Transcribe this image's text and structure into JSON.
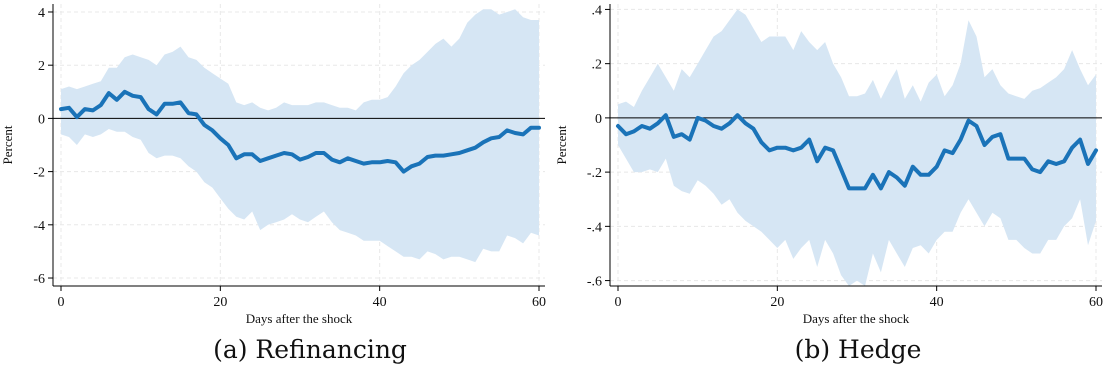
{
  "colors": {
    "line": "#1a73b8",
    "band": "#d6e6f4",
    "zero": "#000000",
    "axis": "#000000",
    "grid": "#e8e8e8"
  },
  "chart_data": [
    {
      "type": "line",
      "caption": "(a) Refinancing",
      "xlabel": "Days after the shock",
      "ylabel": "Percent",
      "xlim": [
        0,
        60
      ],
      "ylim": [
        -6.3,
        4.3
      ],
      "xticks": [
        0,
        20,
        40,
        60
      ],
      "xtick_labels": [
        "0",
        "20",
        "40",
        "60"
      ],
      "yticks": [
        -6,
        -4,
        -2,
        0,
        2,
        4
      ],
      "ytick_labels": [
        "-6",
        "-4",
        "-2",
        "0",
        "2",
        "4"
      ],
      "grid": false,
      "zero_line": 0,
      "x": [
        0,
        1,
        2,
        3,
        4,
        5,
        6,
        7,
        8,
        9,
        10,
        11,
        12,
        13,
        14,
        15,
        16,
        17,
        18,
        19,
        20,
        21,
        22,
        23,
        24,
        25,
        26,
        27,
        28,
        29,
        30,
        31,
        32,
        33,
        34,
        35,
        36,
        37,
        38,
        39,
        40,
        41,
        42,
        43,
        44,
        45,
        46,
        47,
        48,
        49,
        50,
        51,
        52,
        53,
        54,
        55,
        56,
        57,
        58,
        59,
        60
      ],
      "series": [
        {
          "values": [
            0.35,
            0.4,
            0.05,
            0.35,
            0.3,
            0.5,
            0.95,
            0.7,
            1.0,
            0.85,
            0.8,
            0.35,
            0.15,
            0.55,
            0.55,
            0.6,
            0.2,
            0.15,
            -0.25,
            -0.45,
            -0.75,
            -1.0,
            -1.5,
            -1.35,
            -1.35,
            -1.6,
            -1.5,
            -1.4,
            -1.3,
            -1.35,
            -1.55,
            -1.45,
            -1.3,
            -1.3,
            -1.55,
            -1.65,
            -1.5,
            -1.6,
            -1.7,
            -1.65,
            -1.65,
            -1.6,
            -1.65,
            -2.0,
            -1.8,
            -1.7,
            -1.45,
            -1.4,
            -1.4,
            -1.35,
            -1.3,
            -1.2,
            -1.1,
            -0.9,
            -0.75,
            -0.7,
            -0.45,
            -0.55,
            -0.6,
            -0.35,
            -0.35
          ]
        }
      ],
      "band_upper": [
        1.1,
        1.2,
        1.1,
        1.2,
        1.3,
        1.4,
        1.9,
        1.9,
        2.3,
        2.4,
        2.3,
        2.2,
        2.0,
        2.4,
        2.5,
        2.7,
        2.3,
        2.2,
        1.9,
        1.7,
        1.5,
        1.3,
        0.6,
        0.5,
        0.6,
        0.4,
        0.3,
        0.4,
        0.6,
        0.5,
        0.5,
        0.5,
        0.6,
        0.6,
        0.5,
        0.4,
        0.4,
        0.3,
        0.6,
        0.7,
        0.7,
        0.8,
        1.2,
        1.7,
        2.0,
        2.2,
        2.5,
        2.8,
        3.0,
        2.7,
        3.0,
        3.6,
        3.9,
        4.1,
        4.1,
        3.9,
        4.0,
        4.1,
        3.8,
        3.7,
        3.7
      ],
      "band_lower": [
        -0.6,
        -0.7,
        -1.0,
        -0.6,
        -0.7,
        -0.6,
        -0.4,
        -0.5,
        -0.5,
        -0.7,
        -0.8,
        -1.3,
        -1.5,
        -1.4,
        -1.4,
        -1.5,
        -1.8,
        -2.0,
        -2.4,
        -2.6,
        -3.0,
        -3.4,
        -3.7,
        -3.8,
        -3.5,
        -4.2,
        -4.0,
        -3.9,
        -3.8,
        -3.6,
        -3.8,
        -3.9,
        -3.7,
        -3.5,
        -3.9,
        -4.2,
        -4.3,
        -4.4,
        -4.6,
        -4.6,
        -4.6,
        -4.8,
        -5.0,
        -5.2,
        -5.2,
        -5.3,
        -5.0,
        -5.1,
        -5.3,
        -5.2,
        -5.2,
        -5.3,
        -5.4,
        -4.9,
        -5.0,
        -5.0,
        -4.4,
        -4.5,
        -4.7,
        -4.3,
        -4.4
      ]
    },
    {
      "type": "line",
      "caption": "(b) Hedge",
      "xlabel": "Days after the shock",
      "ylabel": "Percent",
      "xlim": [
        0,
        60
      ],
      "ylim": [
        -0.62,
        0.42
      ],
      "xticks": [
        0,
        20,
        40,
        60
      ],
      "xtick_labels": [
        "0",
        "20",
        "40",
        "60"
      ],
      "yticks": [
        -0.6,
        -0.4,
        -0.2,
        0,
        0.2,
        0.4
      ],
      "ytick_labels": [
        "-.6",
        "-.4",
        "-.2",
        "0",
        ".2",
        ".4"
      ],
      "grid": false,
      "zero_line": 0,
      "x": [
        0,
        1,
        2,
        3,
        4,
        5,
        6,
        7,
        8,
        9,
        10,
        11,
        12,
        13,
        14,
        15,
        16,
        17,
        18,
        19,
        20,
        21,
        22,
        23,
        24,
        25,
        26,
        27,
        28,
        29,
        30,
        31,
        32,
        33,
        34,
        35,
        36,
        37,
        38,
        39,
        40,
        41,
        42,
        43,
        44,
        45,
        46,
        47,
        48,
        49,
        50,
        51,
        52,
        53,
        54,
        55,
        56,
        57,
        58,
        59,
        60
      ],
      "series": [
        {
          "values": [
            -0.03,
            -0.06,
            -0.05,
            -0.03,
            -0.04,
            -0.02,
            0.01,
            -0.07,
            -0.06,
            -0.08,
            0.0,
            -0.01,
            -0.03,
            -0.04,
            -0.02,
            0.01,
            -0.02,
            -0.04,
            -0.09,
            -0.12,
            -0.11,
            -0.11,
            -0.12,
            -0.11,
            -0.08,
            -0.16,
            -0.11,
            -0.12,
            -0.19,
            -0.26,
            -0.26,
            -0.26,
            -0.21,
            -0.26,
            -0.2,
            -0.22,
            -0.25,
            -0.18,
            -0.21,
            -0.21,
            -0.18,
            -0.12,
            -0.13,
            -0.08,
            -0.01,
            -0.03,
            -0.1,
            -0.07,
            -0.06,
            -0.15,
            -0.15,
            -0.15,
            -0.19,
            -0.2,
            -0.16,
            -0.17,
            -0.16,
            -0.11,
            -0.08,
            -0.17,
            -0.12
          ]
        }
      ],
      "band_upper": [
        0.05,
        0.06,
        0.04,
        0.1,
        0.15,
        0.2,
        0.15,
        0.1,
        0.18,
        0.15,
        0.2,
        0.25,
        0.3,
        0.32,
        0.36,
        0.4,
        0.38,
        0.33,
        0.28,
        0.3,
        0.3,
        0.3,
        0.25,
        0.32,
        0.28,
        0.25,
        0.28,
        0.2,
        0.15,
        0.08,
        0.08,
        0.09,
        0.14,
        0.07,
        0.13,
        0.18,
        0.07,
        0.12,
        0.06,
        0.13,
        0.16,
        0.08,
        0.12,
        0.2,
        0.36,
        0.3,
        0.15,
        0.18,
        0.12,
        0.09,
        0.08,
        0.07,
        0.1,
        0.11,
        0.13,
        0.15,
        0.18,
        0.25,
        0.18,
        0.12,
        0.16
      ],
      "band_lower": [
        -0.1,
        -0.15,
        -0.2,
        -0.2,
        -0.19,
        -0.2,
        -0.15,
        -0.25,
        -0.27,
        -0.28,
        -0.23,
        -0.25,
        -0.28,
        -0.32,
        -0.3,
        -0.35,
        -0.38,
        -0.4,
        -0.42,
        -0.45,
        -0.48,
        -0.45,
        -0.52,
        -0.48,
        -0.45,
        -0.55,
        -0.45,
        -0.5,
        -0.58,
        -0.62,
        -0.6,
        -0.62,
        -0.5,
        -0.57,
        -0.45,
        -0.5,
        -0.55,
        -0.48,
        -0.47,
        -0.5,
        -0.45,
        -0.42,
        -0.42,
        -0.35,
        -0.3,
        -0.35,
        -0.4,
        -0.35,
        -0.37,
        -0.45,
        -0.45,
        -0.48,
        -0.5,
        -0.5,
        -0.45,
        -0.45,
        -0.4,
        -0.37,
        -0.3,
        -0.47,
        -0.38
      ]
    }
  ]
}
